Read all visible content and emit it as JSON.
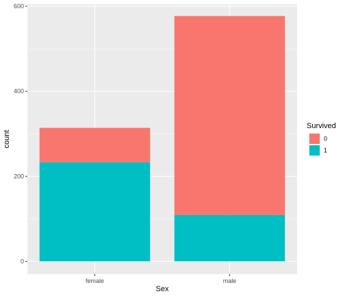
{
  "chart_data": {
    "type": "bar",
    "stacked": true,
    "categories": [
      "female",
      "male"
    ],
    "series": [
      {
        "name": "0",
        "values": [
          81,
          468
        ],
        "color": "#F8766D"
      },
      {
        "name": "1",
        "values": [
          233,
          109
        ],
        "color": "#00BFC4"
      }
    ],
    "xlabel": "Sex",
    "ylabel": "count",
    "ylim": [
      -30,
      605
    ],
    "yticks": [
      0,
      200,
      400,
      600
    ],
    "legend": {
      "title": "Survived",
      "position": "right"
    },
    "grid": true,
    "panel_background": "#EBEBEB"
  }
}
